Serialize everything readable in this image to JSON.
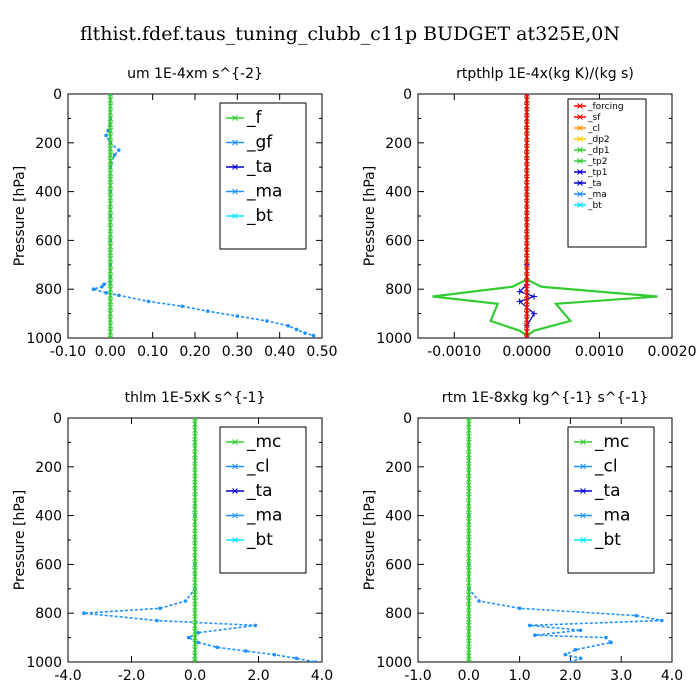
{
  "suptitle": "flthist.fdef.taus_tuning_clubb_c11p  BUDGET at325E,0N",
  "colors": {
    "green": "#33cc33",
    "blue_dotted": "#1e90ff",
    "navy": "#0000cc",
    "cyan": "#00e5ff",
    "red": "#ff0000",
    "black": "#000000"
  },
  "chart_data": [
    {
      "type": "line",
      "title": "um   1E-4xm s^{-2}",
      "ylabel": "Pressure [hPa]",
      "ylim": [
        1000,
        0
      ],
      "xlim": [
        -0.1,
        0.5
      ],
      "xticks": [
        "-0.10",
        "0.00",
        "0.10",
        "0.20",
        "0.30",
        "0.40",
        "0.50"
      ],
      "yticks": [
        "0",
        "200",
        "400",
        "600",
        "800",
        "1000"
      ],
      "legend_position": "top-right",
      "legend": [
        "_f",
        "_gf",
        "_ta",
        "_ma",
        "_bt"
      ],
      "series": [
        {
          "name": "_gf",
          "style": "blue-dotted",
          "x": [
            0.0,
            0.0,
            -0.005,
            -0.01,
            0.0,
            0.02,
            0.01,
            0.0,
            0.0,
            0.0,
            0.0,
            0.0,
            0.0,
            0.0,
            -0.015,
            -0.02,
            -0.04,
            -0.01,
            0.02,
            0.09,
            0.17,
            0.23,
            0.3,
            0.37,
            0.42,
            0.44,
            0.46,
            0.48
          ],
          "y": [
            0,
            100,
            150,
            170,
            200,
            230,
            250,
            300,
            400,
            500,
            600,
            700,
            750,
            770,
            780,
            790,
            800,
            815,
            825,
            850,
            870,
            890,
            910,
            930,
            950,
            965,
            980,
            990
          ]
        },
        {
          "name": "_f",
          "style": "green",
          "x": [
            0.0,
            0.0
          ],
          "y": [
            0,
            1000
          ]
        }
      ]
    },
    {
      "type": "line",
      "title": "rtpthlp   1E-4x(kg K)/(kg s)",
      "ylabel": "Pressure [hPa]",
      "ylim": [
        1000,
        0
      ],
      "xlim": [
        -0.0015,
        0.002
      ],
      "xticks": [
        "-0.0010",
        "0.0000",
        "0.0010",
        "0.0020"
      ],
      "yticks": [
        "0",
        "200",
        "400",
        "600",
        "800",
        "1000"
      ],
      "legend_position": "top-right",
      "legend": [
        "_forcing",
        "_sf",
        "_cl",
        "_dp2",
        "_dp1",
        "_tp2",
        "_tp1",
        "_ta",
        "_ma",
        "_bt"
      ],
      "series": [
        {
          "name": "_dp1",
          "style": "green",
          "x": [
            0.0,
            0.0,
            0.0,
            0.0,
            0.0002,
            0.0018,
            0.0004,
            0.0006,
            0.0001,
            0.0,
            0.0
          ],
          "y": [
            0,
            600,
            700,
            760,
            790,
            830,
            860,
            930,
            970,
            990,
            1000
          ]
        },
        {
          "name": "_tp2",
          "style": "green",
          "x": [
            0.0,
            0.0,
            0.0,
            0.0,
            -0.0002,
            -0.0013,
            -0.0004,
            -0.0005,
            -0.0001,
            0.0,
            0.0
          ],
          "y": [
            0,
            600,
            700,
            760,
            790,
            830,
            860,
            930,
            970,
            990,
            1000
          ]
        },
        {
          "name": "_ta",
          "style": "navy",
          "x": [
            0.0,
            0.0,
            0.0,
            -0.0001,
            0.0001,
            -0.0001,
            0.0001,
            0.0,
            0.0
          ],
          "y": [
            0,
            700,
            780,
            810,
            830,
            850,
            900,
            950,
            1000
          ]
        },
        {
          "name": "_forcing",
          "style": "red",
          "x": [
            0.0,
            0.0
          ],
          "y": [
            0,
            1000
          ]
        }
      ]
    },
    {
      "type": "line",
      "title": "thlm   1E-5xK s^{-1}",
      "ylabel": "Pressure [hPa]",
      "ylim": [
        1000,
        0
      ],
      "xlim": [
        -4.0,
        4.0
      ],
      "xticks": [
        "-4.0",
        "-2.0",
        "0.0",
        "2.0",
        "4.0"
      ],
      "yticks": [
        "0",
        "200",
        "400",
        "600",
        "800",
        "1000"
      ],
      "legend_position": "top-right",
      "legend": [
        "_mc",
        "_cl",
        "_ta",
        "_ma",
        "_bt"
      ],
      "series": [
        {
          "name": "_cl",
          "style": "blue-dotted",
          "x": [
            0.0,
            0.0,
            0.0,
            0.0,
            -0.3,
            -1.1,
            -3.5,
            -1.2,
            1.9,
            0.1,
            -0.2,
            0.1,
            0.7,
            1.6,
            2.5,
            3.2,
            3.8
          ],
          "y": [
            0,
            400,
            600,
            700,
            750,
            780,
            800,
            830,
            850,
            880,
            900,
            920,
            940,
            955,
            970,
            985,
            1000
          ]
        },
        {
          "name": "_mc",
          "style": "green",
          "x": [
            0.0,
            0.0
          ],
          "y": [
            0,
            1000
          ]
        }
      ]
    },
    {
      "type": "line",
      "title": "rtm   1E-8xkg kg^{-1} s^{-1}",
      "ylabel": "Pressure [hPa]",
      "ylim": [
        1000,
        0
      ],
      "xlim": [
        -1.0,
        4.0
      ],
      "xticks": [
        "-1.0",
        "0.0",
        "1.0",
        "2.0",
        "3.0",
        "4.0"
      ],
      "yticks": [
        "0",
        "200",
        "400",
        "600",
        "800",
        "1000"
      ],
      "legend_position": "top-right",
      "legend": [
        "_mc",
        "_cl",
        "_ta",
        "_ma",
        "_bt"
      ],
      "series": [
        {
          "name": "_cl",
          "style": "blue-dotted",
          "x": [
            0.0,
            0.0,
            0.0,
            0.0,
            0.2,
            1.0,
            3.3,
            3.8,
            1.2,
            2.2,
            1.3,
            2.7,
            2.8,
            2.1,
            1.9,
            2.2,
            2.0
          ],
          "y": [
            0,
            400,
            600,
            700,
            750,
            780,
            810,
            830,
            850,
            870,
            890,
            900,
            920,
            950,
            970,
            985,
            1000
          ]
        },
        {
          "name": "_mc",
          "style": "green",
          "x": [
            0.0,
            0.0
          ],
          "y": [
            0,
            1000
          ]
        }
      ]
    }
  ]
}
